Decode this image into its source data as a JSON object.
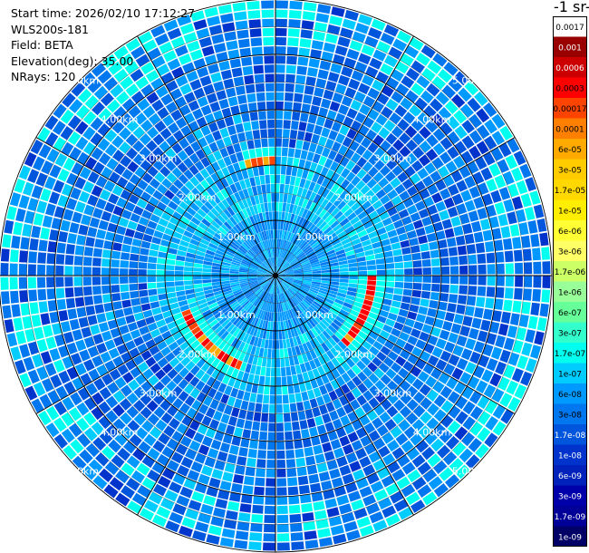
{
  "header": {
    "start_time": "Start time: 2026/02/10 17:12:27",
    "instrument": "WLS200s-181",
    "field": "Field: BETA",
    "elevation": "Elevation(deg): 35.00",
    "nrays": "NRays: 120",
    "unit_title": "-1 sr-"
  },
  "chart_data": {
    "type": "heatmap",
    "subtype": "polar-ppi",
    "range_labels": [
      "1.00km",
      "2.00km",
      "3.00km",
      "4.00km",
      "5.00km"
    ],
    "range_rings_km": [
      1,
      2,
      3,
      4,
      5
    ],
    "max_range_km": 5.0,
    "n_rays": 120,
    "background_level_index": 4,
    "features": [
      {
        "description_level": "arc",
        "angle_from_deg": 200,
        "angle_to_deg": 250,
        "range_km": 1.78,
        "level_index": 14
      },
      {
        "description_level": "arc",
        "angle_from_deg": 90,
        "angle_to_deg": 135,
        "range_km": 1.78,
        "level_index": 14
      },
      {
        "description_level": "arc",
        "angle_from_deg": 345,
        "angle_to_deg": 360,
        "range_km": 2.15,
        "level_index": 15
      }
    ],
    "colorbar": {
      "labels": [
        "0.0017",
        "0.001",
        "0.0006",
        "0.0003",
        "0.00017",
        "0.0001",
        "6e-05",
        "3e-05",
        "1.7e-05",
        "1e-05",
        "6e-06",
        "3e-06",
        "1.7e-06",
        "1e-06",
        "6e-07",
        "3e-07",
        "1.7e-07",
        "1e-07",
        "6e-08",
        "3e-08",
        "1.7e-08",
        "1e-08",
        "6e-09",
        "3e-09",
        "1.7e-09",
        "1e-09"
      ],
      "colors": [
        "#ffffff",
        "#990000",
        "#cc0000",
        "#ff0000",
        "#ff4400",
        "#ff8000",
        "#ffaa00",
        "#ffcc00",
        "#ffd800",
        "#ffee00",
        "#ffff33",
        "#ffff66",
        "#ccff66",
        "#99ff99",
        "#66ff99",
        "#33ffcc",
        "#00ffee",
        "#00ccff",
        "#0099ff",
        "#0077ee",
        "#0055dd",
        "#0033cc",
        "#0022bb",
        "#0000aa",
        "#000099",
        "#000066"
      ]
    }
  }
}
